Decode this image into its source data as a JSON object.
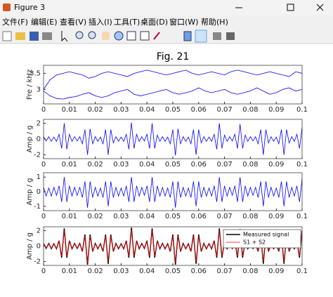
{
  "window": {
    "title": "Figure 3",
    "menu": [
      "文件(F)",
      "编辑(E)",
      "查看(V)",
      "插入(I)",
      "工具(T)",
      "桌面(D)",
      "窗口(W)",
      "帮助(H)"
    ]
  },
  "chart_data": [
    {
      "type": "line",
      "title": "Fig. 21",
      "ylabel": "Fre / kHz",
      "x": [
        0,
        0.0025,
        0.005,
        0.0075,
        0.01,
        0.0125,
        0.015,
        0.0175,
        0.02,
        0.0225,
        0.025,
        0.0275,
        0.03,
        0.0325,
        0.035,
        0.0375,
        0.04,
        0.0425,
        0.045,
        0.0475,
        0.05,
        0.0525,
        0.055,
        0.0575,
        0.06,
        0.0625,
        0.065,
        0.0675,
        0.07,
        0.0725,
        0.075,
        0.0775,
        0.08,
        0.0825,
        0.085,
        0.0875,
        0.09,
        0.0925,
        0.095,
        0.0975,
        0.1
      ],
      "series": [
        {
          "color": "#0000ff",
          "values": [
            3.0,
            3.3,
            3.45,
            3.5,
            3.55,
            3.5,
            3.45,
            3.35,
            3.4,
            3.5,
            3.55,
            3.5,
            3.45,
            3.4,
            3.5,
            3.55,
            3.6,
            3.55,
            3.5,
            3.45,
            3.5,
            3.55,
            3.6,
            3.5,
            3.45,
            3.5,
            3.55,
            3.5,
            3.45,
            3.55,
            3.6,
            3.55,
            3.5,
            3.45,
            3.5,
            3.55,
            3.5,
            3.45,
            3.4,
            3.55,
            3.5
          ]
        },
        {
          "color": "#0000ff",
          "values": [
            2.95,
            2.8,
            2.72,
            2.7,
            2.75,
            2.78,
            2.85,
            2.9,
            2.8,
            2.75,
            2.8,
            2.9,
            2.95,
            3.0,
            2.85,
            2.8,
            2.85,
            2.9,
            2.95,
            3.0,
            2.9,
            2.85,
            2.9,
            2.95,
            3.05,
            2.95,
            2.9,
            2.95,
            3.0,
            2.9,
            2.85,
            2.9,
            2.95,
            3.05,
            2.95,
            2.85,
            2.9,
            3.0,
            3.05,
            2.95,
            3.0
          ]
        }
      ],
      "xlim": [
        0,
        0.1
      ],
      "xticks": [
        0,
        0.01,
        0.02,
        0.03,
        0.04,
        0.05,
        0.06,
        0.07,
        0.08,
        0.09,
        0.1
      ],
      "ylim": [
        2.55,
        3.75
      ],
      "yticks": [
        3,
        3.5
      ]
    },
    {
      "type": "line",
      "ylabel": "Amp / g",
      "x": [
        0,
        0.001,
        0.002,
        0.003,
        0.004,
        0.005,
        0.006,
        0.007,
        0.008,
        0.009,
        0.01,
        0.011,
        0.012,
        0.013,
        0.014,
        0.015,
        0.016,
        0.017,
        0.018,
        0.019,
        0.02,
        0.021,
        0.022,
        0.023,
        0.024,
        0.025,
        0.026,
        0.027,
        0.028,
        0.029,
        0.03,
        0.031,
        0.032,
        0.033,
        0.034,
        0.035,
        0.036,
        0.037,
        0.038,
        0.039,
        0.04,
        0.041,
        0.042,
        0.043,
        0.044,
        0.045,
        0.046,
        0.047,
        0.048,
        0.049,
        0.05,
        0.051,
        0.052,
        0.053,
        0.054,
        0.055,
        0.056,
        0.057,
        0.058,
        0.059,
        0.06,
        0.061,
        0.062,
        0.063,
        0.064,
        0.065,
        0.066,
        0.067,
        0.068,
        0.069,
        0.07,
        0.071,
        0.072,
        0.073,
        0.074,
        0.075,
        0.076,
        0.077,
        0.078,
        0.079,
        0.08,
        0.081,
        0.082,
        0.083,
        0.084,
        0.085,
        0.086,
        0.087,
        0.088,
        0.089,
        0.09,
        0.091,
        0.092,
        0.093,
        0.094,
        0.095,
        0.096,
        0.097,
        0.098,
        0.099,
        0.1
      ],
      "series": [
        {
          "color": "#0000ff",
          "values": [
            0.3,
            -0.25,
            0.3,
            -0.3,
            0.25,
            -0.3,
            0.6,
            -1.2,
            2.0,
            -1.3,
            0.6,
            -0.3,
            0.3,
            -0.25,
            0.3,
            -0.6,
            1.2,
            -2.0,
            1.3,
            -0.6,
            0.3,
            -0.3,
            0.25,
            -0.6,
            1.2,
            -2.0,
            1.2,
            -0.5,
            0.3,
            -0.3,
            0.25,
            -0.3,
            0.6,
            -1.3,
            2.1,
            -1.2,
            0.6,
            -0.3,
            0.3,
            -0.25,
            0.6,
            -1.2,
            2.0,
            -1.2,
            0.5,
            -0.3,
            0.3,
            -0.3,
            0.25,
            -0.6,
            1.2,
            -2.1,
            1.3,
            -0.6,
            0.3,
            -0.3,
            0.25,
            -0.6,
            1.2,
            -2.0,
            1.2,
            -0.5,
            0.3,
            -0.3,
            0.25,
            -0.3,
            0.6,
            -1.3,
            2.0,
            -1.2,
            0.5,
            -0.3,
            0.3,
            -0.25,
            0.6,
            -1.2,
            1.9,
            -1.2,
            0.5,
            -0.3,
            0.3,
            -0.25,
            0.3,
            -0.6,
            1.2,
            -2.0,
            1.2,
            -0.5,
            0.3,
            -0.3,
            0.25,
            -0.6,
            1.2,
            -2.0,
            1.2,
            -0.5,
            0.3,
            -0.3,
            0.6,
            -1.2,
            1.5
          ]
        }
      ],
      "xlim": [
        0,
        0.1
      ],
      "xticks": [
        0,
        0.01,
        0.02,
        0.03,
        0.04,
        0.05,
        0.06,
        0.07,
        0.08,
        0.09,
        0.1
      ],
      "ylim": [
        -2.5,
        2.5
      ],
      "yticks": [
        -2,
        0,
        2
      ]
    },
    {
      "type": "line",
      "ylabel": "Amp / g",
      "x": [
        0,
        0.001,
        0.002,
        0.003,
        0.004,
        0.005,
        0.006,
        0.007,
        0.008,
        0.009,
        0.01,
        0.011,
        0.012,
        0.013,
        0.014,
        0.015,
        0.016,
        0.017,
        0.018,
        0.019,
        0.02,
        0.021,
        0.022,
        0.023,
        0.024,
        0.025,
        0.026,
        0.027,
        0.028,
        0.029,
        0.03,
        0.031,
        0.032,
        0.033,
        0.034,
        0.035,
        0.036,
        0.037,
        0.038,
        0.039,
        0.04,
        0.041,
        0.042,
        0.043,
        0.044,
        0.045,
        0.046,
        0.047,
        0.048,
        0.049,
        0.05,
        0.051,
        0.052,
        0.053,
        0.054,
        0.055,
        0.056,
        0.057,
        0.058,
        0.059,
        0.06,
        0.061,
        0.062,
        0.063,
        0.064,
        0.065,
        0.066,
        0.067,
        0.068,
        0.069,
        0.07,
        0.071,
        0.072,
        0.073,
        0.074,
        0.075,
        0.076,
        0.077,
        0.078,
        0.079,
        0.08,
        0.081,
        0.082,
        0.083,
        0.084,
        0.085,
        0.086,
        0.087,
        0.088,
        0.089,
        0.09,
        0.091,
        0.092,
        0.093,
        0.094,
        0.095,
        0.096,
        0.097,
        0.098,
        0.099,
        0.1
      ],
      "series": [
        {
          "color": "#0000ff",
          "values": [
            0.3,
            -0.3,
            0.25,
            -0.3,
            0.3,
            -0.25,
            0.4,
            -0.7,
            1.0,
            -0.7,
            0.4,
            -0.3,
            0.3,
            -0.25,
            0.3,
            -0.4,
            0.7,
            -1.1,
            0.7,
            -0.4,
            0.3,
            -0.3,
            0.25,
            -0.4,
            0.7,
            -1.0,
            0.7,
            -0.4,
            0.3,
            -0.3,
            0.25,
            -0.3,
            0.4,
            -0.7,
            1.0,
            -0.7,
            0.4,
            -0.3,
            0.3,
            -0.25,
            0.4,
            -0.7,
            1.0,
            -0.7,
            0.4,
            -0.3,
            0.3,
            -0.3,
            0.25,
            -0.4,
            0.7,
            -1.1,
            0.7,
            -0.4,
            0.3,
            -0.3,
            0.25,
            -0.4,
            0.7,
            -1.0,
            0.7,
            -0.4,
            0.3,
            -0.3,
            0.25,
            -0.3,
            0.4,
            -0.7,
            1.0,
            -0.7,
            0.4,
            -0.3,
            0.3,
            -0.25,
            0.4,
            -0.7,
            1.0,
            -0.7,
            0.4,
            -0.3,
            0.3,
            -0.25,
            0.3,
            -0.4,
            0.7,
            -1.0,
            0.7,
            -0.4,
            0.3,
            -0.3,
            0.25,
            -0.4,
            0.7,
            -1.0,
            0.7,
            -0.4,
            0.3,
            -0.3,
            0.4,
            -0.7,
            0.9
          ]
        }
      ],
      "xlim": [
        0,
        0.1
      ],
      "xticks": [
        0,
        0.01,
        0.02,
        0.03,
        0.04,
        0.05,
        0.06,
        0.07,
        0.08,
        0.09,
        0.1
      ],
      "ylim": [
        -1.3,
        1.3
      ],
      "yticks": [
        -1,
        0,
        1
      ]
    },
    {
      "type": "line",
      "ylabel": "Amp / g",
      "legend": "northeast",
      "x": [
        0,
        0.001,
        0.002,
        0.003,
        0.004,
        0.005,
        0.006,
        0.007,
        0.008,
        0.009,
        0.01,
        0.011,
        0.012,
        0.013,
        0.014,
        0.015,
        0.016,
        0.017,
        0.018,
        0.019,
        0.02,
        0.021,
        0.022,
        0.023,
        0.024,
        0.025,
        0.026,
        0.027,
        0.028,
        0.029,
        0.03,
        0.031,
        0.032,
        0.033,
        0.034,
        0.035,
        0.036,
        0.037,
        0.038,
        0.039,
        0.04,
        0.041,
        0.042,
        0.043,
        0.044,
        0.045,
        0.046,
        0.047,
        0.048,
        0.049,
        0.05,
        0.051,
        0.052,
        0.053,
        0.054,
        0.055,
        0.056,
        0.057,
        0.058,
        0.059,
        0.06,
        0.061,
        0.062,
        0.063,
        0.064,
        0.065,
        0.066,
        0.067,
        0.068,
        0.069,
        0.07,
        0.071,
        0.072,
        0.073,
        0.074,
        0.075,
        0.076,
        0.077,
        0.078,
        0.079,
        0.08,
        0.081,
        0.082,
        0.083,
        0.084,
        0.085,
        0.086,
        0.087,
        0.088,
        0.089,
        0.09,
        0.091,
        0.092,
        0.093,
        0.094,
        0.095,
        0.096,
        0.097,
        0.098,
        0.099,
        0.1
      ],
      "series": [
        {
          "name": "Measured signal",
          "color": "#000000",
          "values": [
            0.35,
            -0.3,
            0.35,
            -0.35,
            0.3,
            -0.35,
            0.7,
            -1.5,
            2.3,
            -1.5,
            0.7,
            -0.35,
            0.35,
            -0.3,
            0.35,
            -0.7,
            1.5,
            -2.4,
            1.5,
            -0.7,
            0.35,
            -0.35,
            0.3,
            -0.7,
            1.5,
            -2.3,
            1.5,
            -0.7,
            0.35,
            -0.35,
            0.3,
            -0.35,
            0.7,
            -1.5,
            2.4,
            -1.5,
            0.7,
            -0.35,
            0.35,
            -0.3,
            0.7,
            -1.5,
            2.3,
            -1.5,
            0.7,
            -0.35,
            0.35,
            -0.35,
            0.3,
            -0.7,
            1.5,
            -2.4,
            1.5,
            -0.7,
            0.35,
            -0.35,
            0.3,
            -0.7,
            1.5,
            -2.3,
            1.5,
            -0.7,
            0.35,
            -0.35,
            0.3,
            -0.35,
            0.7,
            -1.5,
            2.3,
            -1.5,
            0.7,
            -0.35,
            0.35,
            -0.3,
            0.7,
            -1.5,
            2.2,
            -1.5,
            0.7,
            -0.35,
            0.35,
            -0.3,
            0.35,
            -0.7,
            1.5,
            -2.3,
            1.5,
            -0.7,
            0.35,
            -0.35,
            0.3,
            -0.7,
            1.5,
            -2.3,
            1.5,
            -0.7,
            0.35,
            -0.35,
            0.7,
            -1.5,
            2.0
          ]
        },
        {
          "name": "S1 + S2",
          "color": "#ff0000",
          "values": [
            0.3,
            -0.25,
            0.3,
            -0.3,
            0.25,
            -0.3,
            0.6,
            -1.3,
            2.0,
            -1.3,
            0.6,
            -0.3,
            0.3,
            -0.25,
            0.3,
            -0.6,
            1.3,
            -2.1,
            1.3,
            -0.6,
            0.3,
            -0.3,
            0.25,
            -0.6,
            1.3,
            -2.0,
            1.3,
            -0.6,
            0.3,
            -0.3,
            0.25,
            -0.3,
            0.6,
            -1.3,
            2.1,
            -1.3,
            0.6,
            -0.3,
            0.3,
            -0.25,
            0.6,
            -1.3,
            2.0,
            -1.3,
            0.6,
            -0.3,
            0.3,
            -0.3,
            0.25,
            -0.6,
            1.3,
            -2.1,
            1.3,
            -0.6,
            0.3,
            -0.3,
            0.25,
            -0.6,
            1.3,
            -2.0,
            1.3,
            -0.6,
            0.3,
            -0.3,
            0.25,
            -0.3,
            0.6,
            -1.3,
            2.0,
            -1.3,
            0.6,
            -0.3,
            0.3,
            -0.25,
            0.6,
            -1.3,
            1.9,
            -1.3,
            0.6,
            -0.3,
            0.3,
            -0.25,
            0.3,
            -0.6,
            1.3,
            -2.0,
            1.3,
            -0.6,
            0.3,
            -0.3,
            0.25,
            -0.6,
            1.3,
            -2.0,
            1.3,
            -0.6,
            0.3,
            -0.3,
            0.6,
            -1.3,
            1.8
          ]
        }
      ],
      "xlim": [
        0,
        0.1
      ],
      "xticks": [
        0,
        0.01,
        0.02,
        0.03,
        0.04,
        0.05,
        0.06,
        0.07,
        0.08,
        0.09,
        0.1
      ],
      "ylim": [
        -2.5,
        2.5
      ],
      "yticks": [
        -2,
        0,
        2
      ]
    }
  ]
}
